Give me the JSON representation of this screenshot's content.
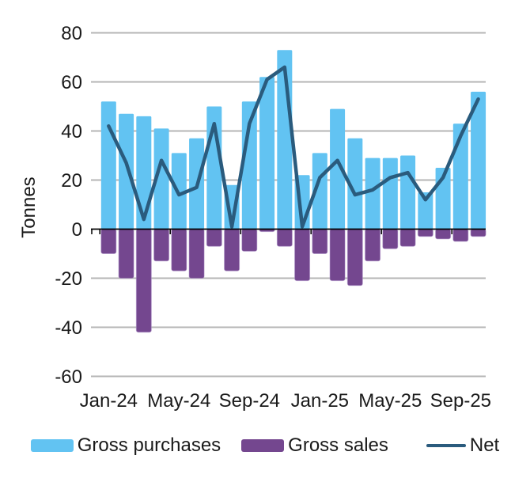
{
  "chart_data": {
    "type": "bar+line combo",
    "ylabel": "Tonnes",
    "x": [
      "Jan-24",
      "Feb-24",
      "Mar-24",
      "Apr-24",
      "May-24",
      "Jun-24",
      "Jul-24",
      "Aug-24",
      "Sep-24",
      "Oct-24",
      "Nov-24",
      "Dec-24",
      "Jan-25",
      "Feb-25",
      "Mar-25",
      "Apr-25",
      "May-25",
      "Jun-25",
      "Jul-25",
      "Aug-25",
      "Sep-25",
      "Oct-25"
    ],
    "x_tick_labels": [
      "Jan-24",
      "May-24",
      "Sep-24",
      "Jan-25",
      "May-25",
      "Sep-25"
    ],
    "x_tick_interval_months": 4,
    "y_ticks": [
      80,
      60,
      40,
      20,
      0,
      -20,
      -40,
      -60
    ],
    "ylim": [
      -60,
      80
    ],
    "grid": "horizontal-on",
    "legend_position": "bottom",
    "series": [
      {
        "name": "Gross purchases",
        "type": "bar",
        "color": "#62c3f2",
        "values": [
          52,
          47,
          46,
          41,
          31,
          37,
          50,
          18,
          52,
          62,
          73,
          22,
          31,
          49,
          37,
          29,
          29,
          30,
          15,
          25,
          43,
          56
        ]
      },
      {
        "name": "Gross sales",
        "type": "bar",
        "color": "#74478f",
        "values": [
          -10,
          -20,
          -42,
          -13,
          -17,
          -20,
          -7,
          -17,
          -9,
          -1,
          -7,
          -21,
          -10,
          -21,
          -23,
          -13,
          -8,
          -7,
          -3,
          -4,
          -5,
          -3
        ]
      },
      {
        "name": "Net",
        "type": "line",
        "color": "#2a5b7d",
        "values": [
          42,
          27,
          4,
          28,
          14,
          17,
          43,
          1,
          43,
          61,
          66,
          1,
          21,
          28,
          14,
          16,
          21,
          23,
          12,
          21,
          38,
          53
        ]
      }
    ],
    "colors": {
      "background": "#ffffff",
      "gridline": "#b5b5b5",
      "axis_line": "#000000",
      "text": "#1a1a1a",
      "sales_bar_edge": "#a98cc4"
    }
  }
}
